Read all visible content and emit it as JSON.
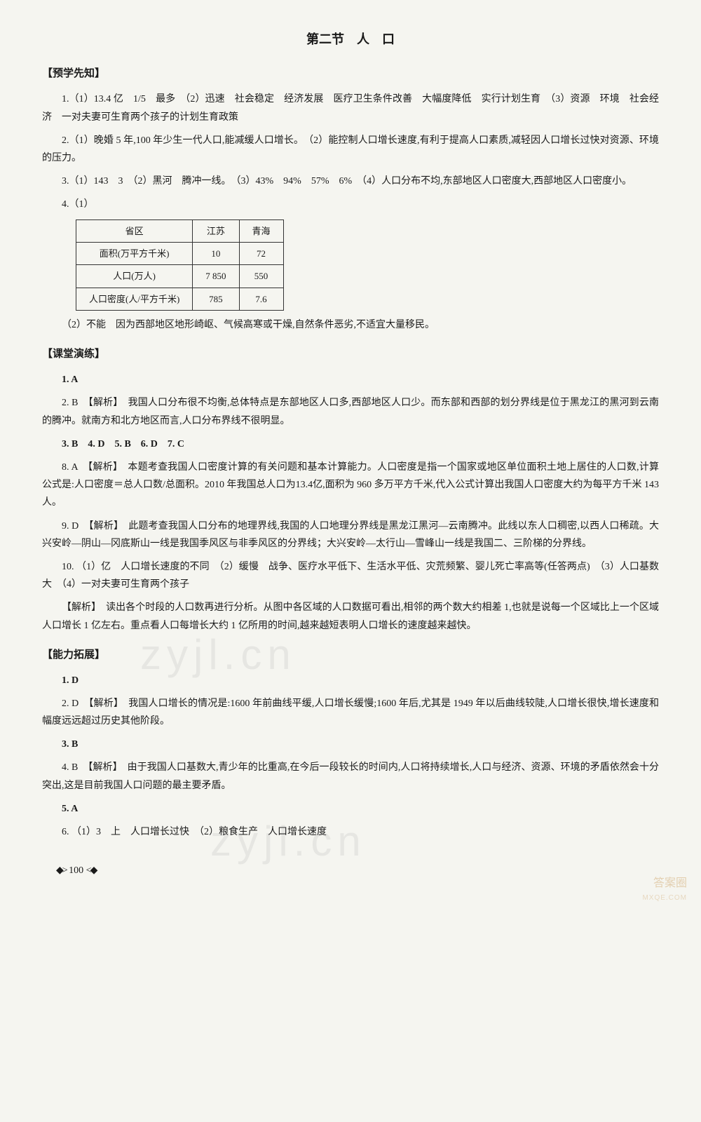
{
  "section_title": "第二节　人　口",
  "subsections": {
    "pre": "【预学先知】",
    "class": "【课堂演练】",
    "ability": "【能力拓展】"
  },
  "pre": {
    "p1": "1.（1）13.4 亿　1/5　最多　（2）迅速　社会稳定　经济发展　医疗卫生条件改善　大幅度降低　实行计划生育　（3）资源　环境　社会经济　一对夫妻可生育两个孩子的计划生育政策",
    "p2": "2.（1）晚婚 5 年,100 年少生一代人口,能减缓人口增长。　（2）能控制人口增长速度,有利于提高人口素质,减轻因人口增长过快对资源、环境的压力。",
    "p3": "3.（1）143　3　（2）黑河　腾冲一线。　（3）43%　94%　57%　6%　（4）人口分布不均,东部地区人口密度大,西部地区人口密度小。",
    "p4_label": "4.（1）",
    "table": {
      "headers": [
        "省区",
        "江苏",
        "青海"
      ],
      "rows": [
        [
          "面积(万平方千米)",
          "10",
          "72"
        ],
        [
          "人口(万人)",
          "7 850",
          "550"
        ],
        [
          "人口密度(人/平方千米)",
          "785",
          "7.6"
        ]
      ]
    },
    "p4_2": "（2）不能　因为西部地区地形崎岖、气候高寒或干燥,自然条件恶劣,不适宜大量移民。"
  },
  "class": {
    "q1": "1. A",
    "q2": "2. B　【解析】　我国人口分布很不均衡,总体特点是东部地区人口多,西部地区人口少。而东部和西部的划分界线是位于黑龙江的黑河到云南的腾冲。就南方和北方地区而言,人口分布界线不很明显。",
    "q3_7": "3. B　4. D　5. B　6. D　7. C",
    "q8": "8. A　【解析】　本题考查我国人口密度计算的有关问题和基本计算能力。人口密度是指一个国家或地区单位面积土地上居住的人口数,计算公式是:人口密度＝总人口数/总面积。2010 年我国总人口为13.4亿,面积为 960 多万平方千米,代入公式计算出我国人口密度大约为每平方千米 143 人。",
    "q9": "9. D　【解析】　此题考查我国人口分布的地理界线,我国的人口地理分界线是黑龙江黑河—云南腾冲。此线以东人口稠密,以西人口稀疏。大兴安岭—阴山—冈底斯山一线是我国季风区与非季风区的分界线；大兴安岭—太行山—雪峰山一线是我国二、三阶梯的分界线。",
    "q10": "10. （1）亿　人口增长速度的不同　（2）缓慢　战争、医疗水平低下、生活水平低、灾荒频繁、婴儿死亡率高等(任答两点)　（3）人口基数大　（4）一对夫妻可生育两个孩子",
    "q10_jiexi": "【解析】　读出各个时段的人口数再进行分析。从图中各区域的人口数据可看出,相邻的两个数大约相差 1,也就是说每一个区域比上一个区域人口增长 1 亿左右。重点看人口每增长大约 1 亿所用的时间,越来越短表明人口增长的速度越来越快。"
  },
  "ability": {
    "q1": "1. D",
    "q2": "2. D　【解析】　我国人口增长的情况是:1600 年前曲线平缓,人口增长缓慢;1600 年后,尤其是 1949 年以后曲线较陡,人口增长很快,增长速度和幅度远远超过历史其他阶段。",
    "q3": "3. B",
    "q4": "4. B　【解析】　由于我国人口基数大,青少年的比重高,在今后一段较长的时间内,人口将持续增长,人口与经济、资源、环境的矛盾依然会十分突出,这是目前我国人口问题的最主要矛盾。",
    "q5": "5. A",
    "q6": "6. （1）3　上　人口增长过快　（2）粮食生产　人口增长速度"
  },
  "page_number": "100",
  "watermark_text": "zyjl.cn",
  "corner_text": "答案圈",
  "corner_sub": "MXQE.COM"
}
